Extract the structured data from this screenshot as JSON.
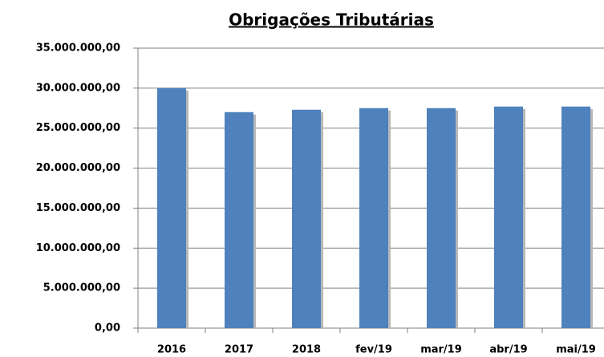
{
  "chart_data": {
    "type": "bar",
    "title": "Obrigações Tributárias",
    "categories": [
      "2016",
      "2017",
      "2018",
      "fev/19",
      "mar/19",
      "abr/19",
      "mai/19"
    ],
    "values": [
      30000000,
      27000000,
      27300000,
      27500000,
      27500000,
      27700000,
      27700000
    ],
    "color": "#4f81bd",
    "ylim": [
      0,
      35000000
    ],
    "yticks": [
      {
        "value": 0,
        "label": "0,00"
      },
      {
        "value": 5000000,
        "label": "5.000.000,00"
      },
      {
        "value": 10000000,
        "label": "10.000.000,00"
      },
      {
        "value": 15000000,
        "label": "15.000.000,00"
      },
      {
        "value": 20000000,
        "label": "20.000.000,00"
      },
      {
        "value": 25000000,
        "label": "25.000.000,00"
      },
      {
        "value": 30000000,
        "label": "30.000.000,00"
      },
      {
        "value": 35000000,
        "label": "35.000.000,00"
      }
    ],
    "grid": true
  }
}
